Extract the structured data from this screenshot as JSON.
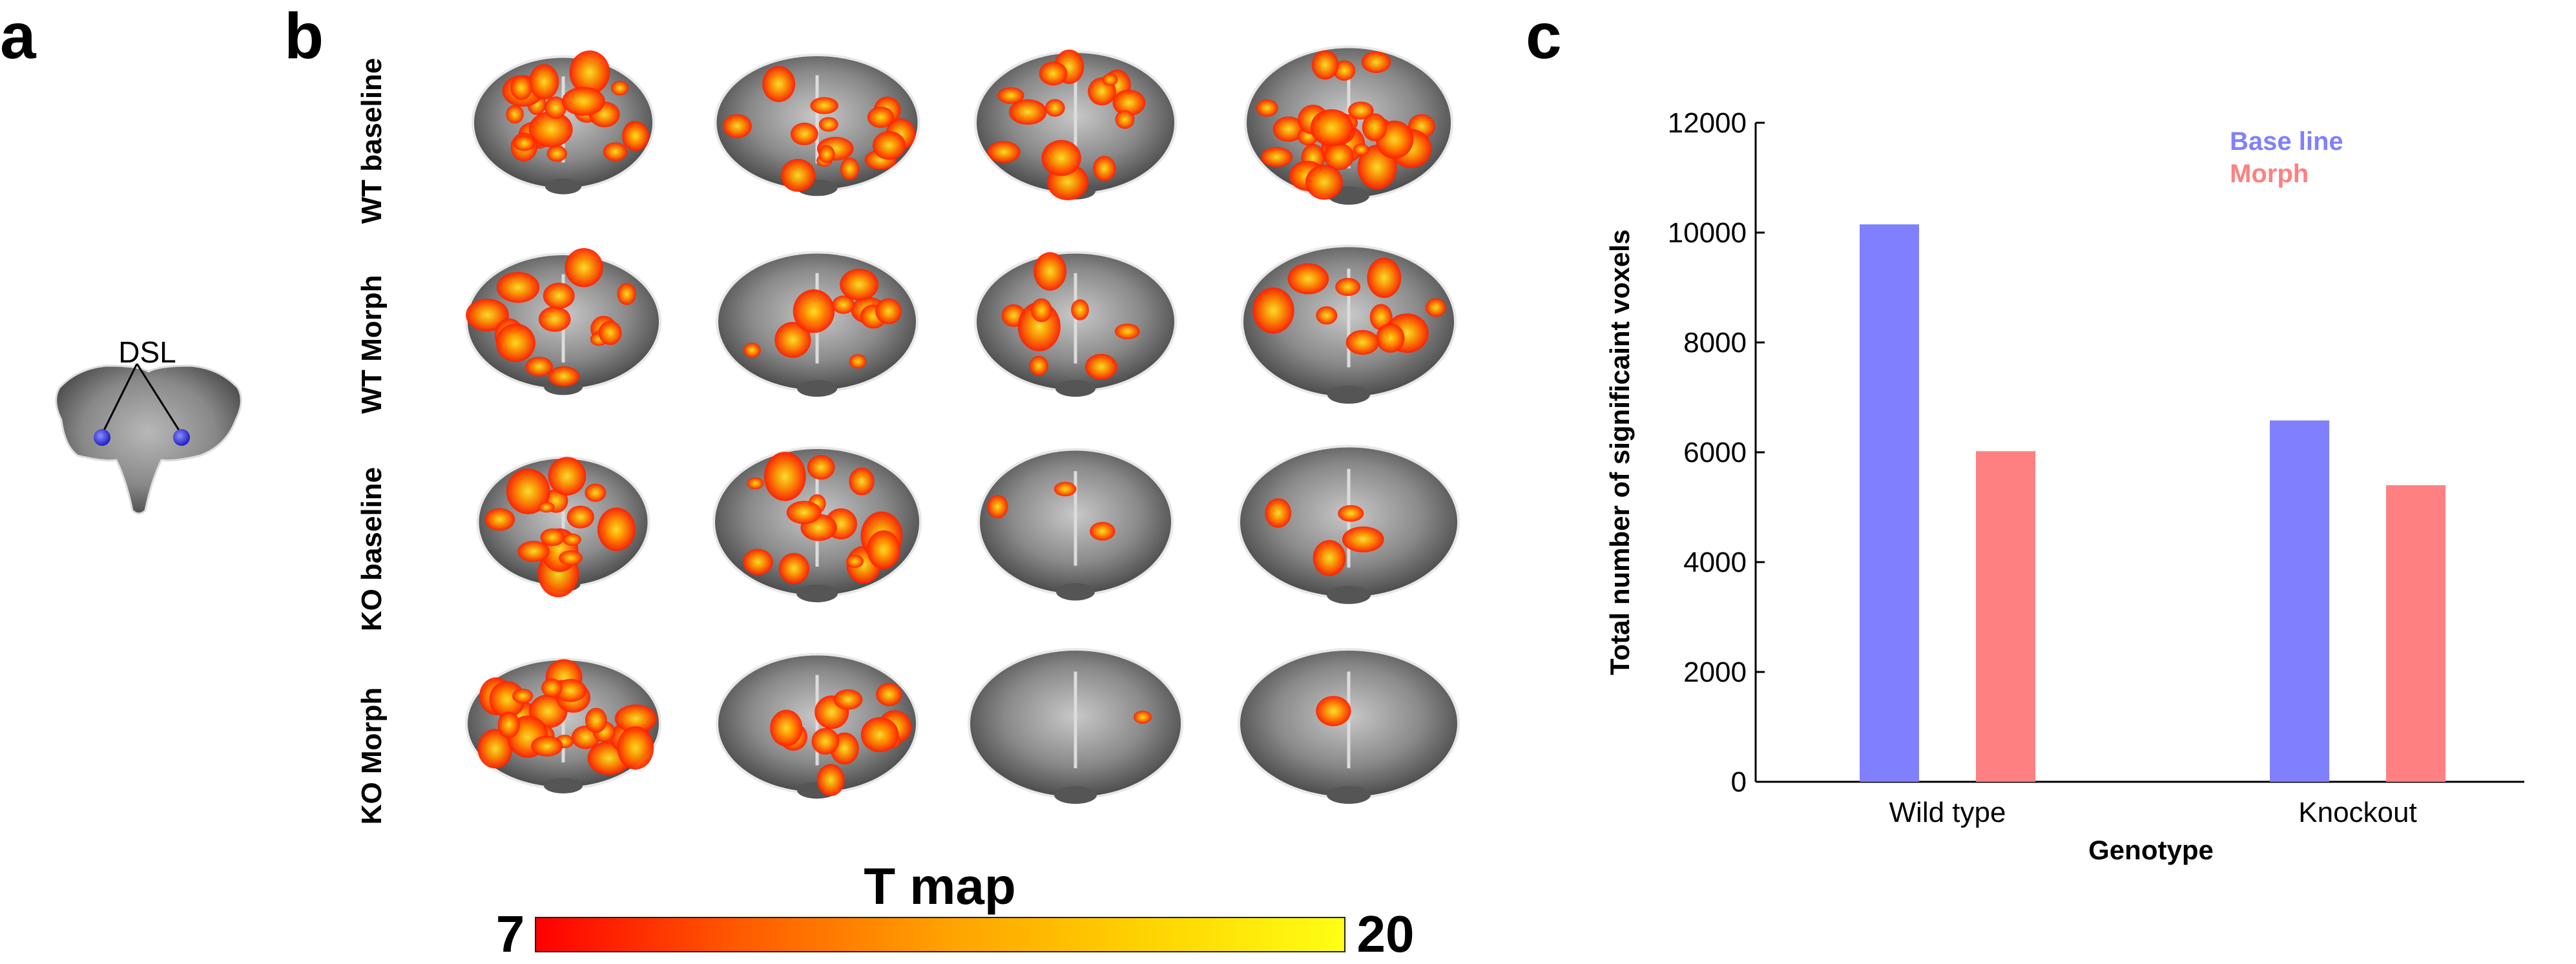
{
  "panel_letters": {
    "a": "a",
    "b": "b",
    "c": "c"
  },
  "panel_a": {
    "dsl_label": "DSL"
  },
  "panel_b": {
    "row_labels": [
      "WT baseline",
      "WT Morph",
      "KO baseline",
      "KO Morph"
    ],
    "colorbar": {
      "title": "T map",
      "min": "7",
      "max": "20",
      "colors": [
        "#ff0000",
        "#ff5a00",
        "#ffa000",
        "#ffd200",
        "#ffff14"
      ]
    }
  },
  "chart_data": {
    "type": "bar",
    "categories": [
      "Wild type",
      "Knockout"
    ],
    "series": [
      {
        "name": "Base line",
        "values": [
          10150,
          6580
        ],
        "color": "#8080ff"
      },
      {
        "name": "Morph",
        "values": [
          6020,
          5400
        ],
        "color": "#ff8080"
      }
    ],
    "xlabel": "Genotype",
    "ylabel": "Total number of significaint voxels",
    "ylim": [
      0,
      12000
    ],
    "yticks": [
      0,
      2000,
      4000,
      6000,
      8000,
      10000,
      12000
    ],
    "grid": false,
    "legend_position": "top-right"
  }
}
